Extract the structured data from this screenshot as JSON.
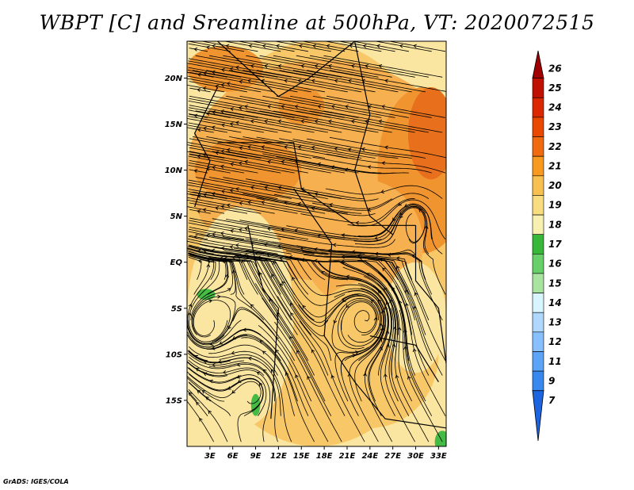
{
  "title": "WBPT [C] and Sreamline at 500hPa, VT: 2020072515",
  "footer": "GrADS: IGES/COLA",
  "map": {
    "lon_range": [
      0,
      34
    ],
    "lat_range": [
      -20,
      24
    ],
    "lat_ticks": [
      {
        "value": 20,
        "label": "20N"
      },
      {
        "value": 15,
        "label": "15N"
      },
      {
        "value": 10,
        "label": "10N"
      },
      {
        "value": 5,
        "label": "5N"
      },
      {
        "value": 0,
        "label": "EQ"
      },
      {
        "value": -5,
        "label": "5S"
      },
      {
        "value": -10,
        "label": "10S"
      },
      {
        "value": -15,
        "label": "15S"
      }
    ],
    "lon_ticks": [
      {
        "value": 3,
        "label": "3E"
      },
      {
        "value": 6,
        "label": "6E"
      },
      {
        "value": 9,
        "label": "9E"
      },
      {
        "value": 12,
        "label": "12E"
      },
      {
        "value": 15,
        "label": "15E"
      },
      {
        "value": 18,
        "label": "18E"
      },
      {
        "value": 21,
        "label": "21E"
      },
      {
        "value": 24,
        "label": "24E"
      },
      {
        "value": 27,
        "label": "27E"
      },
      {
        "value": 30,
        "label": "30E"
      },
      {
        "value": 33,
        "label": "33E"
      }
    ]
  },
  "colorbar": {
    "labels": [
      "26",
      "25",
      "24",
      "23",
      "22",
      "21",
      "20",
      "19",
      "18",
      "17",
      "16",
      "15",
      "14",
      "13",
      "12",
      "11",
      "9",
      "7"
    ],
    "colors": [
      "#a00000",
      "#c01000",
      "#dc2800",
      "#e84800",
      "#f06a10",
      "#f89a20",
      "#f8c050",
      "#f8dc80",
      "#f8f0b0",
      "#38b838",
      "#68d068",
      "#a8e4a0",
      "#d8f4ff",
      "#b0d8ff",
      "#88c0ff",
      "#5ca4f8",
      "#3888f0",
      "#1c64e0"
    ]
  },
  "fields": {
    "wbpt_colors": {
      "c17": "#44bb44",
      "c19": "#fae6a0",
      "c20": "#f8c868",
      "c21": "#f6b050",
      "c22": "#f09430",
      "c23": "#e8701c"
    },
    "wbpt_regions": [
      {
        "level": "c20",
        "center": [
          17,
          2
        ],
        "radius": [
          18,
          22
        ]
      },
      {
        "level": "c21",
        "center": [
          18,
          10
        ],
        "radius": [
          18,
          12
        ]
      },
      {
        "level": "c22",
        "center": [
          8,
          10
        ],
        "radius": [
          7,
          3.5
        ]
      },
      {
        "level": "c22",
        "center": [
          31,
          10
        ],
        "radius": [
          6,
          9
        ]
      },
      {
        "level": "c22",
        "center": [
          5,
          21
        ],
        "radius": [
          5,
          2.5
        ]
      },
      {
        "level": "c22",
        "center": [
          15,
          17
        ],
        "radius": [
          3,
          2
        ]
      },
      {
        "level": "c23",
        "center": [
          32,
          14
        ],
        "radius": [
          3,
          5
        ]
      },
      {
        "level": "c21",
        "center": [
          23,
          2
        ],
        "radius": [
          8,
          7
        ]
      },
      {
        "level": "c20",
        "center": [
          24,
          -10
        ],
        "radius": [
          9,
          8
        ]
      },
      {
        "level": "c19",
        "center": [
          7,
          -6
        ],
        "radius": [
          7,
          12
        ]
      },
      {
        "level": "c19",
        "center": [
          30,
          -6
        ],
        "radius": [
          4,
          6
        ]
      },
      {
        "level": "c17",
        "center": [
          2.5,
          -3.5
        ],
        "radius": [
          1.2,
          0.6
        ]
      },
      {
        "level": "c17",
        "center": [
          9,
          -15.5
        ],
        "radius": [
          0.6,
          1.2
        ]
      },
      {
        "level": "c17",
        "center": [
          33.5,
          -19.5
        ],
        "radius": [
          1,
          1.2
        ]
      }
    ]
  }
}
